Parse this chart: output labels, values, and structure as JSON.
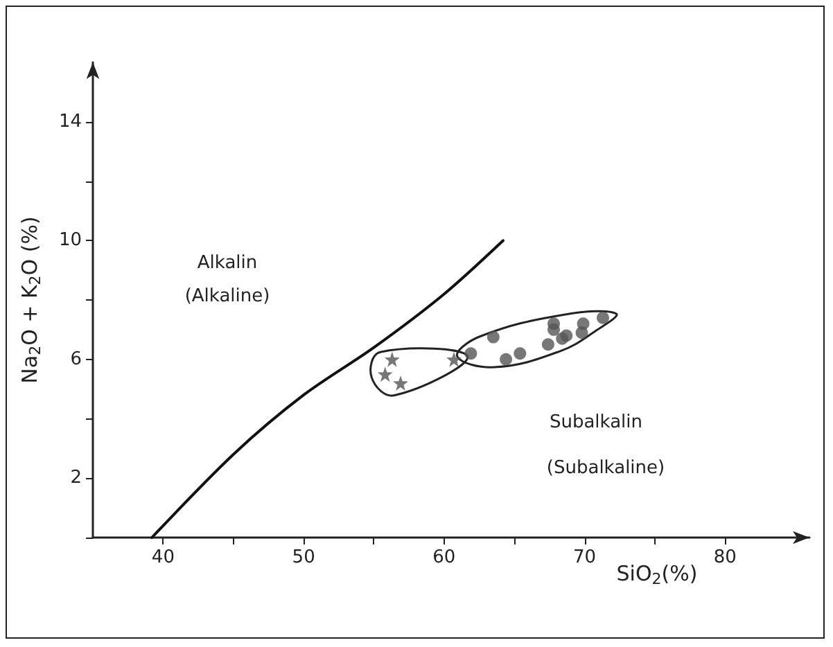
{
  "chart_data": {
    "type": "scatter",
    "xlabel": "SiO$_{2}$(%)",
    "ylabel": "Na$_{2}$O + K$_{2}$O (%)",
    "xlim": [
      35,
      86
    ],
    "ylim": [
      0,
      16
    ],
    "xticks": [
      40,
      {
        "value": 45,
        "label": null
      },
      50,
      {
        "value": 55,
        "label": null
      },
      60,
      {
        "value": 65,
        "label": null
      },
      70,
      {
        "value": 75,
        "label": null
      },
      80
    ],
    "yticks": [
      {
        "value": 0,
        "label": null
      },
      2,
      {
        "value": 4,
        "label": null
      },
      6,
      {
        "value": 8,
        "label": null
      },
      10,
      {
        "value": 12,
        "label": null
      },
      14
    ],
    "grid": false,
    "series": [
      {
        "type": "line",
        "color": "#111111",
        "marker": "none",
        "line_style": "solid",
        "x": [
          39.2,
          45,
          50,
          55,
          60,
          64.2
        ],
        "values": [
          0,
          2.8,
          4.8,
          6.4,
          8.2,
          10
        ]
      },
      {
        "color": "#555555",
        "marker": "star",
        "x": [
          56.3,
          55.8,
          56.9,
          60.7
        ],
        "values": [
          6.0,
          5.5,
          5.2,
          6.0
        ]
      },
      {
        "color": "#555555",
        "marker": "circle",
        "x": [
          61.9,
          63.5,
          64.4,
          65.4,
          67.4,
          67.8,
          67.8,
          68.6,
          68.7,
          68.4,
          69.9,
          69.8,
          71.3
        ],
        "values": [
          6.2,
          6.75,
          6.0,
          6.2,
          6.5,
          7.2,
          7.0,
          null,
          6.8,
          6.7,
          7.2,
          6.9,
          7.4
        ]
      }
    ],
    "annotations": [
      "Alkalin",
      "(Alkaline)",
      "Subalkalin",
      "(Subalkaline)"
    ]
  }
}
